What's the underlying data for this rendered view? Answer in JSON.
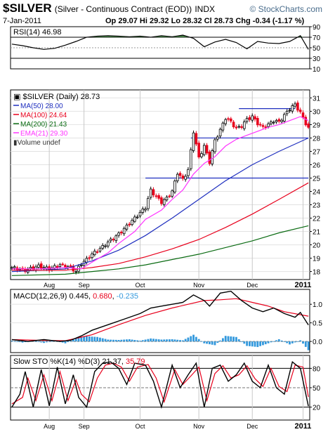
{
  "header": {
    "symbol": "$SILVER",
    "description": "(Silver - Continuous Contract (EOD))",
    "exchange": "INDX",
    "watermark": "© StockCharts.com",
    "date": "7-Jan-2011",
    "open": "Op 29.07",
    "high": "Hi 29.32",
    "low": "Lo 28.32",
    "close": "Cl 28.73",
    "change_label": "Chg",
    "change": "-0.34 (-1.17 %)"
  },
  "colors": {
    "up": "#000000",
    "down": "#e8001c",
    "ma50": "#1f2fbf",
    "ma100": "#e8001c",
    "ma200": "#0a6b12",
    "ema21": "#ff33ff",
    "support": "#1f2fbf",
    "rsi_fill": "#3f7a3f",
    "macd_hist": "#3399dd",
    "signal": "#e8001c"
  },
  "chart_data": [
    {
      "type": "line",
      "panel": "RSI",
      "label": "RSI(14) 46.98",
      "ylim": [
        10,
        90
      ],
      "y_ticks": [
        90,
        70,
        50,
        30,
        10
      ],
      "reference_lines": [
        70,
        30
      ],
      "series": [
        {
          "name": "RSI(14)",
          "x": [
            0,
            4,
            8,
            12,
            16,
            20,
            24,
            28,
            32,
            36,
            40,
            44,
            48,
            52,
            56,
            60,
            64,
            68,
            72,
            76,
            80,
            84,
            88,
            92,
            96,
            100,
            104,
            108,
            111
          ],
          "values": [
            57,
            54,
            50,
            47,
            49,
            55,
            62,
            70,
            72,
            73,
            72,
            71,
            72,
            70,
            73,
            71,
            74,
            68,
            52,
            61,
            66,
            60,
            48,
            62,
            59,
            58,
            62,
            73,
            47
          ]
        }
      ]
    },
    {
      "type": "candlestick",
      "panel": "price",
      "label": "$SILVER (Daily) 28.73",
      "x_axis_labels": [
        "Aug",
        "Sep",
        "Oct",
        "Nov",
        "Dec",
        "2011"
      ],
      "x_axis_label_positions": [
        14,
        27,
        48,
        70,
        90,
        109
      ],
      "ylim": [
        17.4,
        31.6
      ],
      "y_ticks": [
        31,
        30,
        29,
        28,
        27,
        26,
        25,
        24,
        23,
        22,
        21,
        20,
        19,
        18
      ],
      "close_path": {
        "x": [
          0,
          5,
          10,
          14,
          18,
          22,
          24,
          26,
          28,
          30,
          33,
          36,
          40,
          44,
          48,
          50,
          52,
          54,
          56,
          58,
          60,
          62,
          64,
          66,
          68,
          70,
          72,
          74,
          76,
          78,
          80,
          82,
          84,
          86,
          88,
          90,
          92,
          94,
          96,
          98,
          100,
          102,
          104,
          106,
          108,
          110,
          111
        ],
        "values": [
          18.3,
          18.1,
          18.4,
          18.2,
          18.5,
          18.3,
          18.0,
          18.6,
          18.9,
          19.3,
          19.7,
          20.2,
          20.8,
          21.6,
          22.4,
          22.8,
          24.1,
          23.6,
          23.2,
          23.5,
          24.0,
          25.4,
          24.9,
          25.6,
          28.5,
          26.5,
          27.4,
          26.2,
          27.8,
          28.6,
          29.5,
          29.2,
          28.7,
          28.9,
          29.4,
          29.6,
          29.1,
          28.8,
          29.0,
          29.3,
          29.2,
          29.7,
          30.2,
          30.5,
          29.9,
          29.1,
          28.73
        ]
      },
      "overlays": [
        {
          "name": "MA(50) 28.00",
          "x": [
            0,
            20,
            30,
            40,
            50,
            60,
            70,
            80,
            90,
            100,
            111
          ],
          "values": [
            18.0,
            18.2,
            18.8,
            19.6,
            20.7,
            22.0,
            23.4,
            24.8,
            26.0,
            27.0,
            28.0
          ]
        },
        {
          "name": "MA(100) 24.64",
          "x": [
            0,
            20,
            30,
            40,
            50,
            60,
            70,
            80,
            90,
            100,
            111
          ],
          "values": [
            18.1,
            18.1,
            18.3,
            18.6,
            19.1,
            19.7,
            20.4,
            21.3,
            22.3,
            23.4,
            24.64
          ]
        },
        {
          "name": "MA(200) 21.43",
          "x": [
            0,
            20,
            30,
            40,
            50,
            60,
            70,
            80,
            90,
            100,
            111
          ],
          "values": [
            17.7,
            17.8,
            18.0,
            18.2,
            18.5,
            18.9,
            19.3,
            19.8,
            20.3,
            20.9,
            21.43
          ]
        },
        {
          "name": "EMA(21) 29.30",
          "x": [
            0,
            10,
            20,
            26,
            30,
            36,
            40,
            46,
            50,
            56,
            60,
            64,
            68,
            72,
            76,
            80,
            84,
            88,
            92,
            96,
            100,
            104,
            108,
            111
          ],
          "values": [
            18.2,
            18.2,
            18.3,
            18.2,
            18.7,
            19.4,
            20.1,
            21.0,
            21.9,
            22.6,
            23.4,
            24.1,
            25.3,
            26.1,
            26.6,
            27.4,
            27.9,
            28.2,
            28.5,
            28.8,
            29.0,
            29.3,
            29.6,
            29.3
          ]
        }
      ],
      "legend_extra": "Volume undef",
      "horizontal_lines": [
        {
          "value": 30.2,
          "x_start": 85,
          "x_end": 106
        },
        {
          "value": 28.0,
          "x_start": 67,
          "x_end": 111
        },
        {
          "value": 25.0,
          "x_start": 50,
          "x_end": 111
        }
      ]
    },
    {
      "type": "line",
      "panel": "MACD",
      "label": "MACD(12,26,9) 0.445, 0.680, -0.235",
      "ylim": [
        -0.3,
        1.4
      ],
      "y_ticks": [
        1.0,
        0.5,
        0.0
      ],
      "series": [
        {
          "name": "MACD(12,26,9)",
          "x": [
            0,
            6,
            12,
            18,
            22,
            26,
            30,
            36,
            42,
            48,
            52,
            56,
            60,
            64,
            68,
            72,
            74,
            78,
            82,
            86,
            90,
            94,
            98,
            102,
            106,
            108,
            111
          ],
          "values": [
            0.05,
            0.0,
            0.05,
            0.0,
            0.03,
            0.15,
            0.3,
            0.45,
            0.6,
            0.75,
            0.9,
            0.95,
            1.0,
            1.05,
            1.25,
            1.1,
            0.95,
            1.3,
            1.35,
            1.1,
            0.9,
            0.8,
            0.9,
            0.75,
            0.65,
            0.78,
            0.445
          ]
        },
        {
          "name": "Signal",
          "x": [
            0,
            10,
            20,
            30,
            40,
            50,
            60,
            66,
            72,
            78,
            84,
            90,
            96,
            102,
            108,
            111
          ],
          "values": [
            0.05,
            0.03,
            0.02,
            0.18,
            0.45,
            0.7,
            0.9,
            1.0,
            1.1,
            1.12,
            1.15,
            1.05,
            0.95,
            0.8,
            0.72,
            0.68
          ]
        }
      ],
      "histogram": {
        "x": [
          0,
          4,
          8,
          12,
          16,
          20,
          24,
          28,
          32,
          36,
          40,
          44,
          48,
          52,
          56,
          60,
          64,
          68,
          72,
          76,
          80,
          84,
          88,
          92,
          96,
          100,
          104,
          108,
          111
        ],
        "values": [
          0.02,
          -0.03,
          0.02,
          -0.04,
          0.03,
          -0.05,
          0.08,
          0.14,
          0.12,
          0.05,
          0.04,
          0.06,
          0.02,
          0.08,
          0.05,
          0.06,
          0.03,
          0.18,
          -0.05,
          -0.1,
          0.15,
          0.12,
          -0.12,
          -0.15,
          -0.05,
          0.06,
          -0.08,
          0.03,
          -0.235
        ]
      }
    },
    {
      "type": "line",
      "panel": "STO",
      "label": "Slow STO %K(14) %D(3) 21.37, 35.79",
      "ylim": [
        0,
        100
      ],
      "y_ticks": [
        80,
        50,
        20
      ],
      "reference_lines": [
        80,
        50,
        20
      ],
      "series": [
        {
          "name": "%K(14)",
          "x": [
            0,
            3,
            5,
            8,
            11,
            14,
            17,
            20,
            23,
            25,
            28,
            31,
            34,
            37,
            40,
            43,
            46,
            50,
            53,
            56,
            60,
            63,
            66,
            69,
            72,
            75,
            78,
            81,
            84,
            87,
            90,
            93,
            96,
            99,
            102,
            105,
            108,
            111
          ],
          "values": [
            20,
            40,
            75,
            20,
            78,
            22,
            82,
            25,
            70,
            35,
            20,
            75,
            88,
            90,
            80,
            55,
            88,
            85,
            60,
            20,
            85,
            50,
            70,
            88,
            20,
            80,
            85,
            60,
            70,
            88,
            60,
            50,
            85,
            50,
            40,
            90,
            80,
            21.37
          ]
        },
        {
          "name": "%D(3)",
          "x": [
            0,
            4,
            6,
            9,
            12,
            15,
            18,
            21,
            24,
            26,
            29,
            32,
            35,
            38,
            41,
            44,
            47,
            51,
            54,
            57,
            61,
            64,
            67,
            70,
            73,
            76,
            79,
            82,
            85,
            88,
            91,
            94,
            97,
            100,
            103,
            106,
            109,
            111
          ],
          "values": [
            25,
            35,
            65,
            30,
            70,
            30,
            75,
            30,
            62,
            40,
            28,
            65,
            85,
            88,
            82,
            60,
            82,
            86,
            65,
            28,
            78,
            55,
            68,
            82,
            30,
            72,
            84,
            65,
            70,
            84,
            64,
            52,
            80,
            52,
            44,
            85,
            82,
            35.79
          ]
        }
      ],
      "x_axis_labels": [
        "Aug",
        "Sep",
        "Oct",
        "Nov",
        "Dec",
        "2011"
      ],
      "x_axis_label_positions": [
        14,
        27,
        48,
        70,
        90,
        109
      ]
    }
  ]
}
